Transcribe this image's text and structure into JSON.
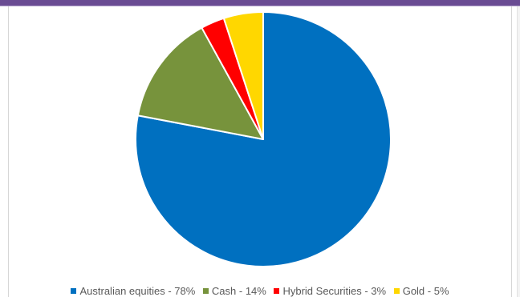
{
  "chart_data": {
    "type": "pie",
    "title": "",
    "start_angle_deg": 0,
    "direction": "clockwise",
    "legend_position": "bottom",
    "slices": [
      {
        "label": "Australian equities - 78%",
        "value": 78,
        "color": "#0070c0"
      },
      {
        "label": "Cash - 14%",
        "value": 14,
        "color": "#77933c"
      },
      {
        "label": "Hybrid Securities - 3%",
        "value": 3,
        "color": "#ff0000"
      },
      {
        "label": "Gold - 5%",
        "value": 5,
        "color": "#ffd700"
      }
    ]
  }
}
